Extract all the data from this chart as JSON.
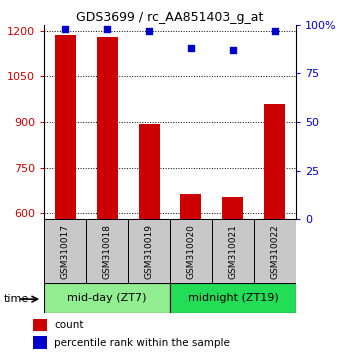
{
  "title": "GDS3699 / rc_AA851403_g_at",
  "samples": [
    "GSM310017",
    "GSM310018",
    "GSM310019",
    "GSM310020",
    "GSM310021",
    "GSM310022"
  ],
  "counts": [
    1185,
    1180,
    893,
    665,
    655,
    960
  ],
  "percentile_ranks": [
    98,
    98,
    97,
    88,
    87,
    97
  ],
  "ylim_left": [
    580,
    1220
  ],
  "ylim_right": [
    0,
    100
  ],
  "yticks_left": [
    600,
    750,
    900,
    1050,
    1200
  ],
  "yticks_right": [
    0,
    25,
    50,
    75,
    100
  ],
  "groups": [
    {
      "label": "mid-day (ZT7)",
      "indices": [
        0,
        1,
        2
      ],
      "color": "#90EE90"
    },
    {
      "label": "midnight (ZT19)",
      "indices": [
        3,
        4,
        5
      ],
      "color": "#22DD55"
    }
  ],
  "bar_color": "#CC0000",
  "dot_color": "#0000CC",
  "bar_width": 0.5,
  "grid_color": "#000000",
  "bg_color": "#ffffff",
  "left_tick_color": "#CC0000",
  "right_tick_color": "#0000CC",
  "sample_box_color": "#C8C8C8",
  "time_label": "time",
  "legend_count_label": "count",
  "legend_pct_label": "percentile rank within the sample"
}
